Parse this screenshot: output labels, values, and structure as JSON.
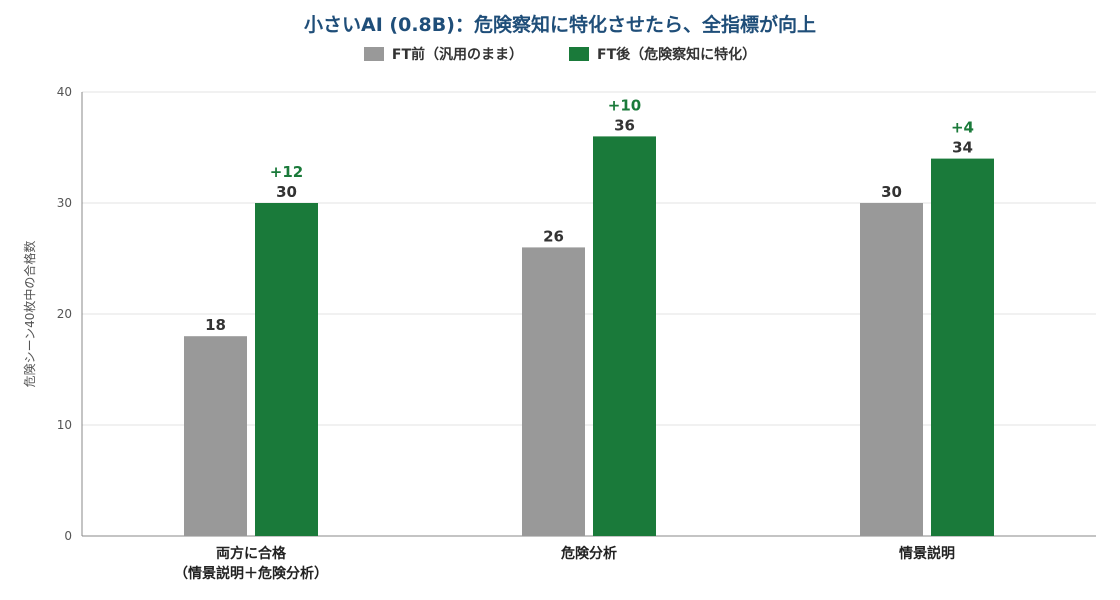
{
  "chart_data": {
    "type": "bar",
    "title": "小さいAI (0.8B)：危険察知に特化させたら、全指標が向上",
    "ylabel": "危険シーン40枚中の合格数",
    "xlabel": "",
    "ylim": [
      0,
      40
    ],
    "yticks": [
      0,
      10,
      20,
      30,
      40
    ],
    "grid": true,
    "legend_position": "top-center",
    "categories": [
      [
        "両方に合格",
        "（情景説明＋危険分析）"
      ],
      [
        "危険分析"
      ],
      [
        "情景説明"
      ]
    ],
    "series": [
      {
        "name": "FT前（汎用のまま）",
        "color": "#999999",
        "values": [
          18,
          26,
          30
        ]
      },
      {
        "name": "FT後（危険察知に特化）",
        "color": "#1a7a3a",
        "values": [
          30,
          36,
          34
        ]
      }
    ],
    "annotations": [
      "+12",
      "+10",
      "+4"
    ],
    "annotation_color": "#1a7a3a"
  }
}
